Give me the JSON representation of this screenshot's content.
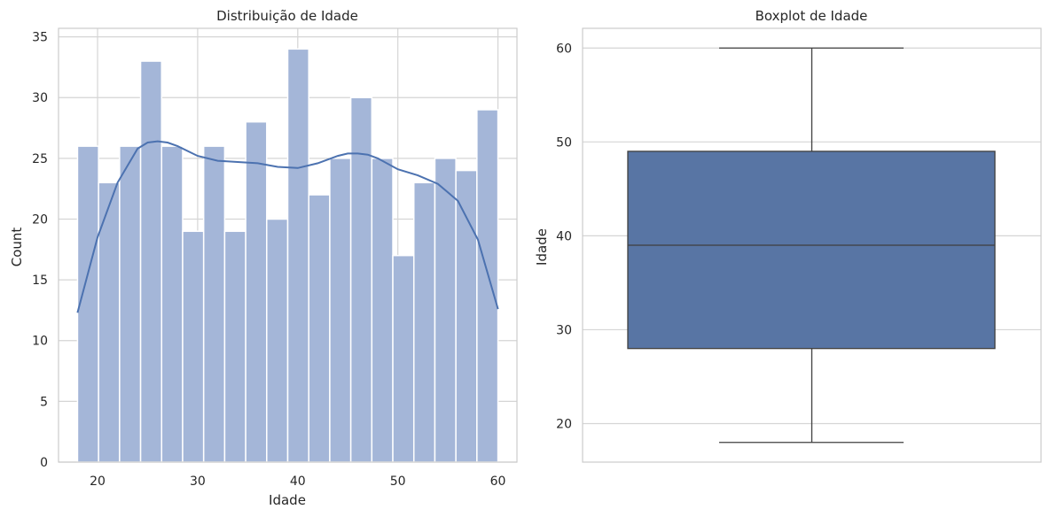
{
  "colors": {
    "histogram_bar": "#a4b6d8",
    "kde_line": "#4c72b0",
    "box_fill": "#5875a4",
    "box_line": "#3f3f3f",
    "grid": "#d5d5d5",
    "spine": "#cccccc"
  },
  "chart_data": [
    {
      "type": "bar",
      "subtype": "histogram-with-kde",
      "title": "Distribuição de Idade",
      "xlabel": "Idade",
      "ylabel": "Count",
      "xlim": [
        16.1,
        61.9
      ],
      "ylim": [
        0,
        35.7
      ],
      "xticks": [
        20,
        30,
        40,
        50,
        60
      ],
      "yticks": [
        0,
        5,
        10,
        15,
        20,
        25,
        30,
        35
      ],
      "grid": true,
      "bin_edges": [
        18.0,
        20.1,
        22.2,
        24.3,
        26.4,
        28.5,
        30.6,
        32.7,
        34.8,
        36.9,
        39.0,
        41.1,
        43.2,
        45.3,
        47.4,
        49.5,
        51.6,
        53.7,
        55.8,
        57.9,
        60.0
      ],
      "counts": [
        26,
        23,
        26,
        33,
        26,
        19,
        26,
        19,
        28,
        20,
        34,
        22,
        25,
        30,
        25,
        17,
        23,
        25,
        24,
        29
      ],
      "kde": {
        "x": [
          18,
          20,
          22,
          24,
          25,
          26,
          27,
          28,
          30,
          32,
          34,
          36,
          38,
          40,
          42,
          44,
          45,
          46,
          47,
          48,
          50,
          52,
          54,
          56,
          58,
          60
        ],
        "y": [
          12.3,
          18.5,
          23.0,
          25.8,
          26.3,
          26.4,
          26.3,
          26.0,
          25.2,
          24.8,
          24.7,
          24.6,
          24.3,
          24.2,
          24.6,
          25.2,
          25.4,
          25.4,
          25.3,
          25.0,
          24.1,
          23.6,
          22.9,
          21.5,
          18.3,
          12.6
        ]
      }
    },
    {
      "type": "boxplot",
      "title": "Boxplot de Idade",
      "xlabel": "",
      "ylabel": "Idade",
      "ylim": [
        15.9,
        62.1
      ],
      "yticks": [
        20,
        30,
        40,
        50,
        60
      ],
      "grid": true,
      "stats": {
        "whisker_low": 18,
        "q1": 28,
        "median": 39,
        "q3": 49,
        "whisker_high": 60
      }
    }
  ]
}
